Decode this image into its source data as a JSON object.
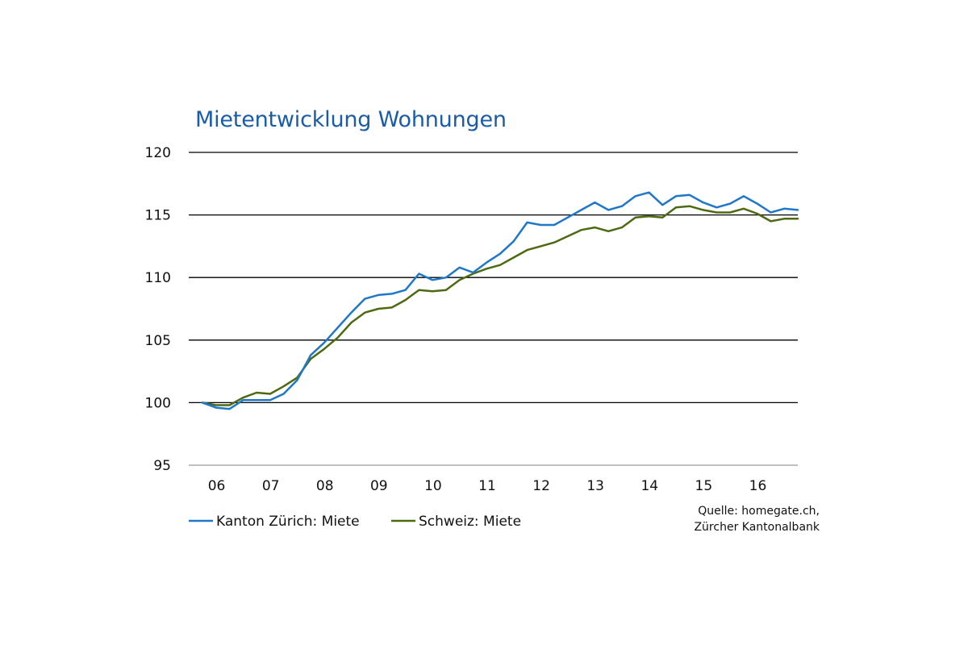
{
  "chart_data": {
    "type": "line",
    "title": "Mietentwicklung Wohnungen",
    "xlabel": "",
    "ylabel": "",
    "ylim": [
      95,
      120
    ],
    "yticks": [
      "95",
      "100",
      "105",
      "110",
      "115",
      "120"
    ],
    "xticks": [
      "06",
      "07",
      "08",
      "09",
      "10",
      "11",
      "12",
      "13",
      "14",
      "15",
      "16"
    ],
    "grid": "horizontal",
    "legend_position": "bottom-left",
    "source": [
      "Quelle: homegate.ch,",
      "Zürcher Kantonalbank"
    ],
    "x": [
      2006.0,
      2006.25,
      2006.5,
      2006.75,
      2007.0,
      2007.25,
      2007.5,
      2007.75,
      2008.0,
      2008.25,
      2008.5,
      2008.75,
      2009.0,
      2009.25,
      2009.5,
      2009.75,
      2010.0,
      2010.25,
      2010.5,
      2010.75,
      2011.0,
      2011.25,
      2011.5,
      2011.75,
      2012.0,
      2012.25,
      2012.5,
      2012.75,
      2013.0,
      2013.25,
      2013.5,
      2013.75,
      2014.0,
      2014.25,
      2014.5,
      2014.75,
      2015.0,
      2015.25,
      2015.5,
      2015.75,
      2016.0,
      2016.25,
      2016.5,
      2016.75,
      2017.0
    ],
    "series": [
      {
        "name": "Kanton Zürich: Miete",
        "color": "#1f77c9",
        "values": [
          100.0,
          99.6,
          99.5,
          100.2,
          100.2,
          100.2,
          100.7,
          101.8,
          103.8,
          104.8,
          106.0,
          107.2,
          108.3,
          108.6,
          108.7,
          109.0,
          110.3,
          109.8,
          110.0,
          110.8,
          110.4,
          111.2,
          111.9,
          112.9,
          114.4,
          114.2,
          114.2,
          114.8,
          115.4,
          116.0,
          115.4,
          115.7,
          116.5,
          116.8,
          115.8,
          116.5,
          116.6,
          116.0,
          115.6,
          115.9,
          116.5,
          115.9,
          115.2,
          115.5,
          115.4
        ]
      },
      {
        "name": "Schweiz: Miete",
        "color": "#4d6a12",
        "values": [
          100.0,
          99.8,
          99.8,
          100.4,
          100.8,
          100.7,
          101.3,
          102.0,
          103.5,
          104.3,
          105.2,
          106.4,
          107.2,
          107.5,
          107.6,
          108.2,
          109.0,
          108.9,
          109.0,
          109.8,
          110.3,
          110.7,
          111.0,
          111.6,
          112.2,
          112.5,
          112.8,
          113.3,
          113.8,
          114.0,
          113.7,
          114.0,
          114.8,
          114.9,
          114.8,
          115.6,
          115.7,
          115.4,
          115.2,
          115.2,
          115.5,
          115.1,
          114.5,
          114.7,
          114.7
        ]
      }
    ]
  }
}
